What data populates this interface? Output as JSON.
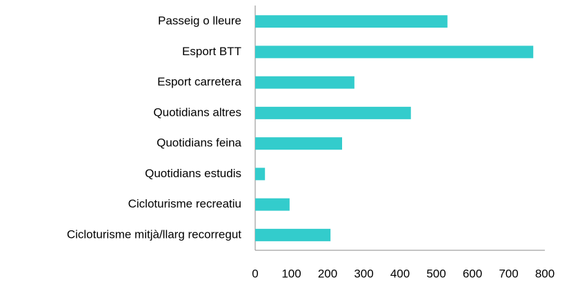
{
  "chart_data": {
    "type": "bar",
    "orientation": "horizontal",
    "categories": [
      "Passeig o lleure",
      "Esport BTT",
      "Esport carretera",
      "Quotidians altres",
      "Quotidians feina",
      "Quotidians estudis",
      "Cicloturisme recreatiu",
      "Cicloturisme mitjà/llarg recorregut"
    ],
    "values": [
      531,
      768,
      274,
      430,
      240,
      27,
      95,
      208
    ],
    "color": "#33cccc",
    "xlim": [
      0,
      800
    ],
    "xticks": [
      0,
      100,
      200,
      300,
      400,
      500,
      600,
      700,
      800
    ],
    "grid": false
  }
}
